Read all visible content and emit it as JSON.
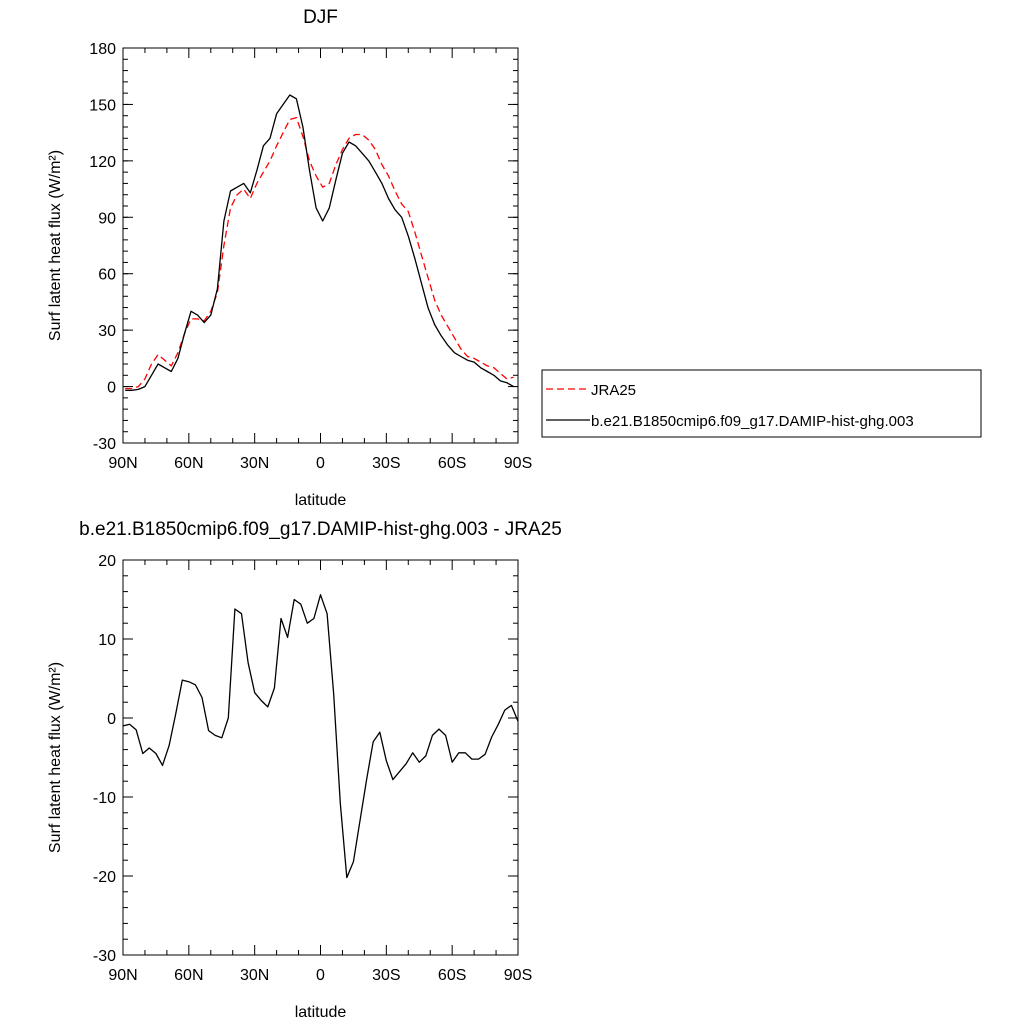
{
  "chart_data": [
    {
      "type": "line",
      "title": "DJF",
      "xlabel": "latitude",
      "ylabel": "Surf latent heat flux (W/m²)",
      "xlim": [
        90,
        -90
      ],
      "ylim": [
        -30,
        180
      ],
      "x_ticks": [
        90,
        60,
        30,
        0,
        -30,
        -60,
        -90
      ],
      "x_tick_labels": [
        "90N",
        "60N",
        "30N",
        "0",
        "30S",
        "60S",
        "90S"
      ],
      "y_ticks": [
        -30,
        0,
        30,
        60,
        90,
        120,
        150,
        180
      ],
      "grid": false,
      "legend_position": "right",
      "series": [
        {
          "name": "JRA25",
          "style": "dashed",
          "color": "#ff0000",
          "x": [
            89,
            86,
            83,
            80,
            77,
            74,
            71,
            68,
            65,
            62,
            59,
            56,
            53,
            50,
            47,
            44,
            41,
            38,
            35,
            32,
            29,
            26,
            23,
            20,
            17,
            14,
            11,
            8,
            5,
            2,
            -1,
            -4,
            -7,
            -10,
            -13,
            -16,
            -19,
            -22,
            -25,
            -28,
            -31,
            -34,
            -37,
            -40,
            -43,
            -46,
            -49,
            -52,
            -55,
            -58,
            -61,
            -64,
            -67,
            -70,
            -73,
            -76,
            -79,
            -82,
            -85,
            -88
          ],
          "y": [
            -1,
            -1,
            0,
            4,
            12,
            17,
            14,
            11,
            18,
            28,
            36,
            36,
            35,
            40,
            50,
            75,
            95,
            102,
            105,
            100,
            108,
            114,
            120,
            128,
            135,
            142,
            143,
            133,
            120,
            112,
            106,
            108,
            118,
            126,
            132,
            134,
            134,
            131,
            126,
            118,
            112,
            104,
            97,
            93,
            82,
            70,
            58,
            46,
            38,
            32,
            26,
            20,
            16,
            15,
            13,
            11,
            10,
            7,
            4,
            5
          ]
        },
        {
          "name": "b.e21.B1850cmip6.f09_g17.DAMIP-hist-ghg.003",
          "style": "solid",
          "color": "#000000",
          "x": [
            89,
            86,
            83,
            80,
            77,
            74,
            71,
            68,
            65,
            62,
            59,
            56,
            53,
            50,
            47,
            44,
            41,
            38,
            35,
            32,
            29,
            26,
            23,
            20,
            17,
            14,
            11,
            8,
            5,
            2,
            -1,
            -4,
            -7,
            -10,
            -13,
            -16,
            -19,
            -22,
            -25,
            -28,
            -31,
            -34,
            -37,
            -40,
            -43,
            -46,
            -49,
            -52,
            -55,
            -58,
            -61,
            -64,
            -67,
            -70,
            -73,
            -76,
            -79,
            -82,
            -85,
            -88
          ],
          "y": [
            -2,
            -2,
            -1.5,
            0,
            6,
            12,
            10,
            8,
            15,
            28,
            40,
            38,
            34,
            38,
            52,
            88,
            104,
            106,
            108,
            103,
            115,
            128,
            132,
            145,
            150,
            155,
            153,
            138,
            115,
            95,
            88,
            95,
            110,
            124,
            130,
            128,
            124,
            120,
            114,
            108,
            100,
            94,
            90,
            80,
            68,
            55,
            42,
            33,
            27,
            22,
            18,
            16,
            14,
            13,
            10,
            8,
            6,
            3,
            2,
            0
          ]
        }
      ]
    },
    {
      "type": "line",
      "title": "b.e21.B1850cmip6.f09_g17.DAMIP-hist-ghg.003 - JRA25",
      "xlabel": "latitude",
      "ylabel": "Surf latent heat flux (W/m²)",
      "xlim": [
        90,
        -90
      ],
      "ylim": [
        -30,
        20
      ],
      "x_ticks": [
        90,
        60,
        30,
        0,
        -30,
        -60,
        -90
      ],
      "x_tick_labels": [
        "90N",
        "60N",
        "30N",
        "0",
        "30S",
        "60S",
        "90S"
      ],
      "y_ticks": [
        -30,
        -20,
        -10,
        0,
        10,
        20
      ],
      "grid": false,
      "series": [
        {
          "style": "solid",
          "color": "#000000",
          "x": [
            90,
            87,
            84,
            81,
            78,
            75,
            72,
            69,
            66,
            63,
            60,
            57,
            54,
            51,
            48,
            45,
            42,
            39,
            36,
            33,
            30,
            27,
            24,
            21,
            18,
            15,
            12,
            9,
            6,
            3,
            0,
            -3,
            -6,
            -9,
            -12,
            -15,
            -18,
            -21,
            -24,
            -27,
            -30,
            -33,
            -36,
            -39,
            -42,
            -45,
            -48,
            -51,
            -54,
            -57,
            -60,
            -63,
            -66,
            -69,
            -72,
            -75,
            -78,
            -81,
            -84,
            -87,
            -90
          ],
          "y": [
            -1,
            -0.8,
            -1.5,
            -4.5,
            -3.8,
            -4.5,
            -6,
            -3.5,
            0.5,
            4.8,
            4.6,
            4.2,
            2.6,
            -1.6,
            -2.2,
            -2.5,
            0,
            13.8,
            13.2,
            7,
            3.2,
            2.2,
            1.4,
            3.8,
            12.6,
            10.2,
            15,
            14.4,
            12,
            12.6,
            15.6,
            13.2,
            3,
            -10.8,
            -20.2,
            -18.2,
            -13,
            -7.8,
            -3,
            -1.8,
            -5.4,
            -7.8,
            -6.8,
            -5.8,
            -4.4,
            -5.6,
            -4.8,
            -2.2,
            -1.4,
            -2.2,
            -5.6,
            -4.4,
            -4.4,
            -5.2,
            -5.2,
            -4.6,
            -2.4,
            -0.8,
            1,
            1.6,
            -0.4
          ]
        }
      ]
    }
  ]
}
